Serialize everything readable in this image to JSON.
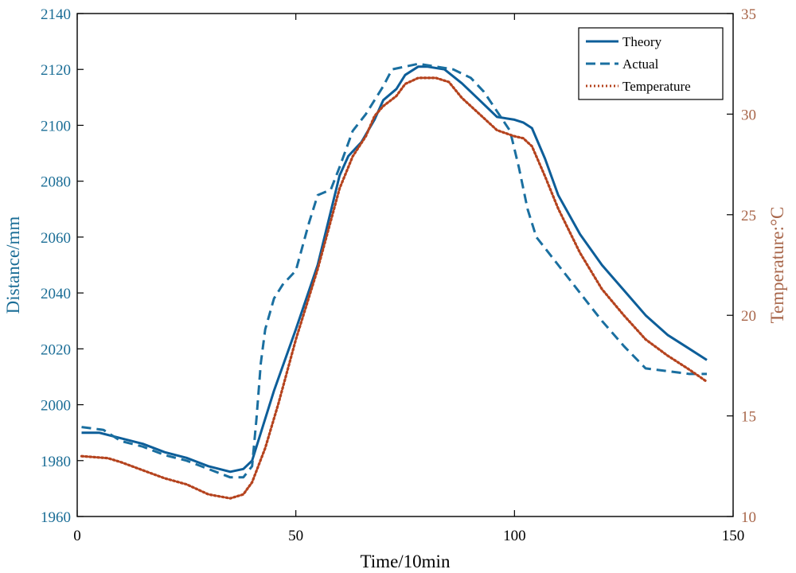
{
  "chart_data": {
    "type": "line",
    "title": "",
    "xlabel": "Time/10min",
    "ylabel_left": "Distance/mm",
    "ylabel_right": "Temperature:°C",
    "xlim": [
      0,
      150
    ],
    "ylim_left": [
      1960,
      2140
    ],
    "ylim_right": [
      10,
      35
    ],
    "xticks": [
      0,
      50,
      100,
      150
    ],
    "yticks_left": [
      1960,
      1980,
      2000,
      2020,
      2040,
      2060,
      2080,
      2100,
      2120,
      2140
    ],
    "yticks_right": [
      10,
      15,
      20,
      25,
      30,
      35
    ],
    "legend_position": "top-right",
    "colors": {
      "theory": "#0d5e99",
      "actual": "#1a6fa0",
      "temperature": "#b5431e",
      "left_axis": "#1a6d96",
      "right_axis": "#a8664a"
    },
    "series": [
      {
        "name": "Theory",
        "axis": "left",
        "style": "solid",
        "points": [
          [
            1,
            1990
          ],
          [
            5,
            1990
          ],
          [
            10,
            1988
          ],
          [
            15,
            1986
          ],
          [
            20,
            1983
          ],
          [
            25,
            1981
          ],
          [
            30,
            1978
          ],
          [
            35,
            1976
          ],
          [
            38,
            1977
          ],
          [
            40,
            1980
          ],
          [
            42,
            1990
          ],
          [
            45,
            2005
          ],
          [
            50,
            2027
          ],
          [
            55,
            2050
          ],
          [
            60,
            2082
          ],
          [
            62,
            2089
          ],
          [
            65,
            2094
          ],
          [
            68,
            2102
          ],
          [
            70,
            2109
          ],
          [
            73,
            2113
          ],
          [
            75,
            2118
          ],
          [
            78,
            2121
          ],
          [
            80,
            2121
          ],
          [
            84,
            2120
          ],
          [
            88,
            2115
          ],
          [
            92,
            2109
          ],
          [
            96,
            2103
          ],
          [
            100,
            2102
          ],
          [
            102,
            2101
          ],
          [
            104,
            2099
          ],
          [
            107,
            2088
          ],
          [
            110,
            2075
          ],
          [
            115,
            2061
          ],
          [
            120,
            2050
          ],
          [
            125,
            2041
          ],
          [
            130,
            2032
          ],
          [
            135,
            2025
          ],
          [
            140,
            2020
          ],
          [
            144,
            2016
          ]
        ]
      },
      {
        "name": "Actual",
        "axis": "left",
        "style": "dashed",
        "points": [
          [
            1,
            1992
          ],
          [
            6,
            1991
          ],
          [
            10,
            1987
          ],
          [
            15,
            1985
          ],
          [
            20,
            1982
          ],
          [
            25,
            1980
          ],
          [
            30,
            1977
          ],
          [
            35,
            1974
          ],
          [
            38,
            1974
          ],
          [
            40,
            1978
          ],
          [
            41,
            1995
          ],
          [
            42,
            2015
          ],
          [
            43,
            2027
          ],
          [
            45,
            2038
          ],
          [
            47,
            2043
          ],
          [
            50,
            2048
          ],
          [
            53,
            2065
          ],
          [
            55,
            2075
          ],
          [
            58,
            2077
          ],
          [
            60,
            2085
          ],
          [
            63,
            2098
          ],
          [
            66,
            2104
          ],
          [
            70,
            2114
          ],
          [
            72,
            2120
          ],
          [
            75,
            2121
          ],
          [
            78,
            2122
          ],
          [
            82,
            2121
          ],
          [
            86,
            2120
          ],
          [
            90,
            2117
          ],
          [
            93,
            2112
          ],
          [
            96,
            2105
          ],
          [
            99,
            2098
          ],
          [
            101,
            2085
          ],
          [
            103,
            2070
          ],
          [
            105,
            2060
          ],
          [
            110,
            2050
          ],
          [
            115,
            2040
          ],
          [
            120,
            2030
          ],
          [
            125,
            2021
          ],
          [
            130,
            2013
          ],
          [
            135,
            2012
          ],
          [
            140,
            2011
          ],
          [
            144,
            2011
          ]
        ]
      },
      {
        "name": "Temperature",
        "axis": "right",
        "style": "dotted",
        "points": [
          [
            1,
            13
          ],
          [
            7,
            12.9
          ],
          [
            10,
            12.7
          ],
          [
            15,
            12.3
          ],
          [
            20,
            11.9
          ],
          [
            25,
            11.6
          ],
          [
            30,
            11.1
          ],
          [
            35,
            10.9
          ],
          [
            38,
            11.1
          ],
          [
            40,
            11.7
          ],
          [
            43,
            13.4
          ],
          [
            46,
            15.6
          ],
          [
            50,
            18.8
          ],
          [
            55,
            22.3
          ],
          [
            60,
            26.3
          ],
          [
            63,
            27.9
          ],
          [
            66,
            28.9
          ],
          [
            68,
            29.9
          ],
          [
            70,
            30.4
          ],
          [
            73,
            30.9
          ],
          [
            75,
            31.5
          ],
          [
            78,
            31.8
          ],
          [
            82,
            31.8
          ],
          [
            85,
            31.6
          ],
          [
            88,
            30.8
          ],
          [
            92,
            30.0
          ],
          [
            96,
            29.2
          ],
          [
            100,
            28.9
          ],
          [
            102,
            28.8
          ],
          [
            104,
            28.4
          ],
          [
            107,
            26.9
          ],
          [
            110,
            25.3
          ],
          [
            115,
            23.1
          ],
          [
            120,
            21.3
          ],
          [
            125,
            20.0
          ],
          [
            130,
            18.8
          ],
          [
            135,
            18.0
          ],
          [
            140,
            17.3
          ],
          [
            144,
            16.7
          ]
        ]
      }
    ]
  }
}
